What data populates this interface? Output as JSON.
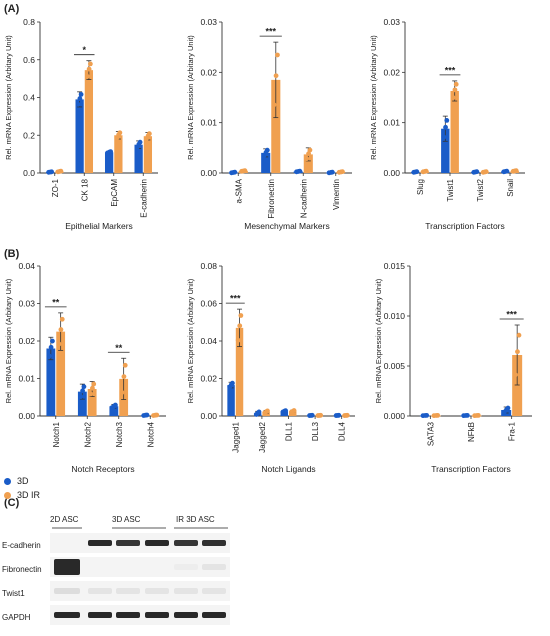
{
  "panel_labels": {
    "a": "(A)",
    "b": "(B)",
    "c": "(C)"
  },
  "colors": {
    "3D": "#1a5cc8",
    "3D IR": "#f0a050",
    "axis": "#333333"
  },
  "legend": [
    {
      "label": "3D",
      "color": "#1a5cc8"
    },
    {
      "label": "3D IR",
      "color": "#f0a050"
    }
  ],
  "chart_data": [
    {
      "type": "bar",
      "xlabel": "Epithelial Markers",
      "ylabel": "Rel. mRNA Expression (Arbitary Unit)",
      "categories": [
        "ZO-1",
        "CK 18",
        "EpCAM",
        "E-cadherin"
      ],
      "series": [
        {
          "name": "3D",
          "values": [
            0.005,
            0.39,
            0.11,
            0.15
          ],
          "err": [
            0.002,
            0.04,
            0.005,
            0.02
          ]
        },
        {
          "name": "3D IR",
          "values": [
            0.008,
            0.545,
            0.2,
            0.195
          ],
          "err": [
            0.003,
            0.05,
            0.02,
            0.02
          ]
        }
      ],
      "ylim": [
        0,
        0.8
      ],
      "yticks": [
        "0.0",
        "0.2",
        "0.4",
        "0.6",
        "0.8"
      ],
      "significance": [
        {
          "category": 1,
          "label": "*"
        }
      ]
    },
    {
      "type": "bar",
      "xlabel": "Mesenchymal Markers",
      "ylabel": "Rel. mRNA Expression (Arbitary Unit)",
      "categories": [
        "a-SMA",
        "Fibronectin",
        "N-cadherin",
        "Vimentin"
      ],
      "series": [
        {
          "name": "3D",
          "values": [
            0.0001,
            0.004,
            0.0003,
            0.0001
          ],
          "err": [
            0.0001,
            0.0008,
            0.0001,
            0.0001
          ]
        },
        {
          "name": "3D IR",
          "values": [
            0.0004,
            0.0185,
            0.0037,
            0.0002
          ],
          "err": [
            0.0001,
            0.0075,
            0.0013,
            0.0001
          ]
        }
      ],
      "ylim": [
        0,
        0.03
      ],
      "yticks": [
        "0.00",
        "0.01",
        "0.02",
        "0.03"
      ],
      "significance": [
        {
          "category": 1,
          "label": "***"
        }
      ]
    },
    {
      "type": "bar",
      "xlabel": "Transcription Factors",
      "ylabel": "Rel. mRNA Expression (Arbitary Unit)",
      "categories": [
        "Slug",
        "Twist1",
        "Twist2",
        "Snail"
      ],
      "series": [
        {
          "name": "3D",
          "values": [
            0.0002,
            0.0088,
            0.0002,
            0.0003
          ],
          "err": [
            0.0001,
            0.0025,
            0.0001,
            0.0001
          ]
        },
        {
          "name": "3D IR",
          "values": [
            0.0003,
            0.0163,
            0.0002,
            0.0004
          ],
          "err": [
            0.0001,
            0.002,
            0.0001,
            0.0001
          ]
        }
      ],
      "ylim": [
        0,
        0.03
      ],
      "yticks": [
        "0.00",
        "0.01",
        "0.02",
        "0.03"
      ],
      "significance": [
        {
          "category": 1,
          "label": "***"
        }
      ]
    },
    {
      "type": "bar",
      "xlabel": "Notch Receptors",
      "ylabel": "Rel. mRNA Expression (Arbitary Unit)",
      "categories": [
        "Notch1",
        "Notch2",
        "Notch3",
        "Notch4"
      ],
      "series": [
        {
          "name": "3D",
          "values": [
            0.018,
            0.0065,
            0.0026,
            0.0002
          ],
          "err": [
            0.003,
            0.002,
            0.0005,
            0.0001
          ]
        },
        {
          "name": "3D IR",
          "values": [
            0.0225,
            0.0072,
            0.0099,
            0.0002
          ],
          "err": [
            0.005,
            0.002,
            0.0055,
            0.0001
          ]
        }
      ],
      "ylim": [
        0,
        0.04
      ],
      "yticks": [
        "0.00",
        "0.01",
        "0.02",
        "0.03",
        "0.04"
      ],
      "significance": [
        {
          "category": 0,
          "label": "**"
        },
        {
          "category": 2,
          "label": "**"
        }
      ]
    },
    {
      "type": "bar",
      "xlabel": "Notch Ligands",
      "ylabel": "Rel. mRNA Expression (Arbitary Unit)",
      "categories": [
        "Jagged1",
        "Jagged2",
        "DLL1",
        "DLL3",
        "DLL4"
      ],
      "series": [
        {
          "name": "3D",
          "values": [
            0.0165,
            0.0015,
            0.0025,
            0.0003,
            0.0003
          ],
          "err": [
            0.0015,
            0.001,
            0.0005,
            0.0001,
            0.0001
          ]
        },
        {
          "name": "3D IR",
          "values": [
            0.047,
            0.0022,
            0.0025,
            0.0003,
            0.0003
          ],
          "err": [
            0.01,
            0.0008,
            0.0006,
            0.0001,
            0.0001
          ]
        }
      ],
      "ylim": [
        0,
        0.08
      ],
      "yticks": [
        "0.00",
        "0.02",
        "0.04",
        "0.06",
        "0.08"
      ],
      "significance": [
        {
          "category": 0,
          "label": "***"
        }
      ]
    },
    {
      "type": "bar",
      "xlabel": "Transcription Factors",
      "ylabel": "Rel. mRNA Expression (Arbitary Unit)",
      "categories": [
        "SATA3",
        "NFkB",
        "Fra-1"
      ],
      "series": [
        {
          "name": "3D",
          "values": [
            5e-05,
            5e-05,
            0.0006
          ],
          "err": [
            2e-05,
            2e-05,
            0.0003
          ]
        },
        {
          "name": "3D IR",
          "values": [
            5e-05,
            5e-05,
            0.0061
          ],
          "err": [
            2e-05,
            2e-05,
            0.003
          ]
        }
      ],
      "ylim": [
        0,
        0.015
      ],
      "yticks": [
        "0.000",
        "0.005",
        "0.010",
        "0.015"
      ],
      "significance": [
        {
          "category": 2,
          "label": "***"
        }
      ]
    }
  ],
  "western_blot": {
    "groups": [
      "2D ASC",
      "3D ASC",
      "IR 3D ASC"
    ],
    "rows": [
      {
        "label": "E-cadherin",
        "intensity": [
          0.0,
          0.0,
          0.95,
          0.9,
          0.95,
          0.9,
          0.92
        ]
      },
      {
        "label": "Fibronectin",
        "intensity": [
          0.95,
          0.0,
          0.05,
          0.05,
          0.05,
          0.08,
          0.12
        ]
      },
      {
        "label": "Twist1",
        "intensity": [
          0.15,
          0.0,
          0.12,
          0.12,
          0.12,
          0.12,
          0.12
        ]
      },
      {
        "label": "GAPDH",
        "intensity": [
          0.95,
          0.0,
          0.95,
          0.95,
          0.95,
          0.95,
          0.95
        ]
      }
    ]
  }
}
